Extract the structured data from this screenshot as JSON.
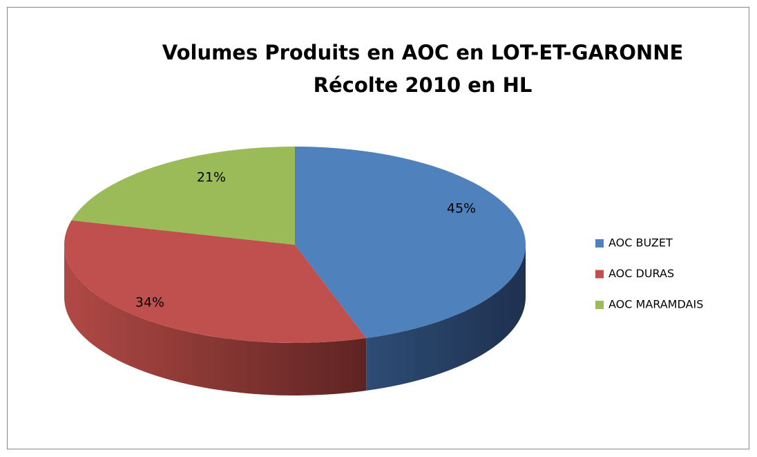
{
  "chart_data": {
    "type": "pie3d",
    "title": "Volumes Produits en AOC en LOT-ET-GARONNE",
    "subtitle": "Récolte 2010 en HL",
    "categories": [
      "AOC BUZET",
      "AOC DURAS",
      "AOC MARAMDAIS"
    ],
    "values": [
      45,
      34,
      21
    ],
    "value_labels": [
      "45%",
      "34%",
      "21%"
    ],
    "colors": [
      "#4f81bd",
      "#c0504d",
      "#9bbb59"
    ],
    "legend": "right"
  }
}
